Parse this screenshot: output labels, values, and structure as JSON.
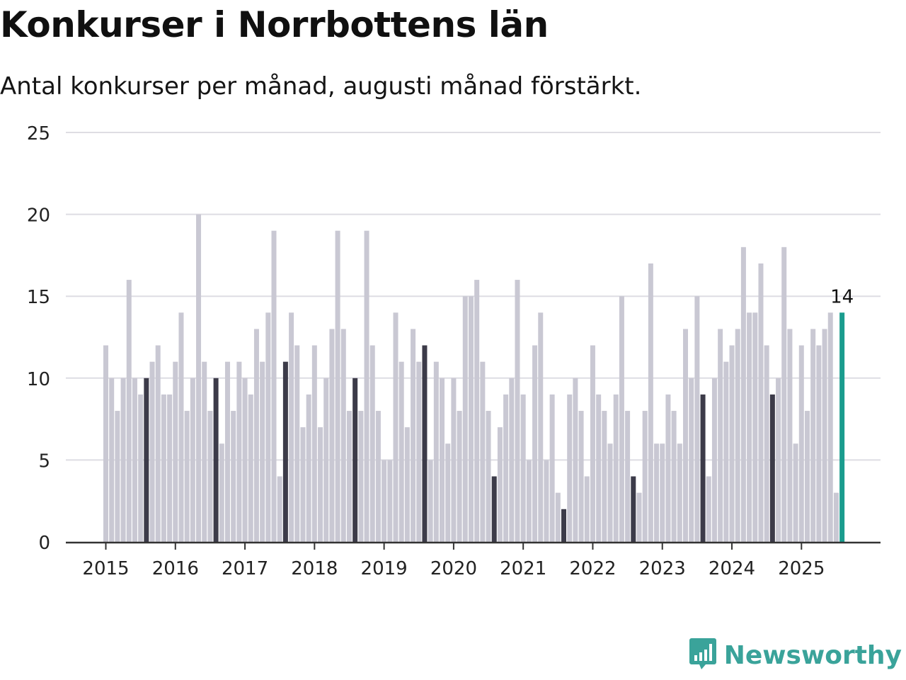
{
  "title": "Konkurser i Norrbottens län",
  "subtitle": "Antal konkurser per månad, augusti månad förstärkt.",
  "brand": {
    "name": "Newsworthy",
    "icon": "newsworthy-logo-icon"
  },
  "colors": {
    "bar": "#c9c8d3",
    "highlight": "#3c3b49",
    "latest": "#1a9c8e",
    "grid": "#dedde3",
    "axis": "#333333"
  },
  "chart_data": {
    "type": "bar",
    "title": "Konkurser i Norrbottens län",
    "subtitle": "Antal konkurser per månad, augusti månad förstärkt.",
    "xlabel": "",
    "ylabel": "",
    "ylim": [
      0,
      25
    ],
    "yticks": [
      0,
      5,
      10,
      15,
      20,
      25
    ],
    "xticks": [
      "2015",
      "2016",
      "2017",
      "2018",
      "2019",
      "2020",
      "2021",
      "2022",
      "2023",
      "2024",
      "2025"
    ],
    "grid": true,
    "start": "2015-01",
    "highlight_month": "augusti",
    "values": [
      12,
      10,
      8,
      10,
      16,
      10,
      9,
      10,
      11,
      12,
      9,
      9,
      11,
      14,
      8,
      10,
      20,
      11,
      8,
      10,
      6,
      11,
      8,
      11,
      10,
      9,
      13,
      11,
      14,
      19,
      4,
      11,
      14,
      12,
      7,
      9,
      12,
      7,
      10,
      13,
      19,
      13,
      8,
      10,
      8,
      19,
      12,
      8,
      5,
      5,
      14,
      11,
      7,
      13,
      11,
      12,
      5,
      11,
      10,
      6,
      10,
      8,
      15,
      15,
      16,
      11,
      8,
      4,
      7,
      9,
      10,
      16,
      9,
      5,
      12,
      14,
      5,
      9,
      3,
      2,
      9,
      10,
      8,
      4,
      12,
      9,
      8,
      6,
      9,
      15,
      8,
      4,
      3,
      8,
      17,
      6,
      6,
      9,
      8,
      6,
      13,
      10,
      15,
      9,
      4,
      10,
      13,
      11,
      12,
      13,
      18,
      14,
      14,
      17,
      12,
      9,
      10,
      18,
      13,
      6,
      12,
      8,
      13,
      12,
      13,
      14,
      3,
      14
    ],
    "annotation": {
      "label": "14",
      "month": "2025-08"
    }
  }
}
